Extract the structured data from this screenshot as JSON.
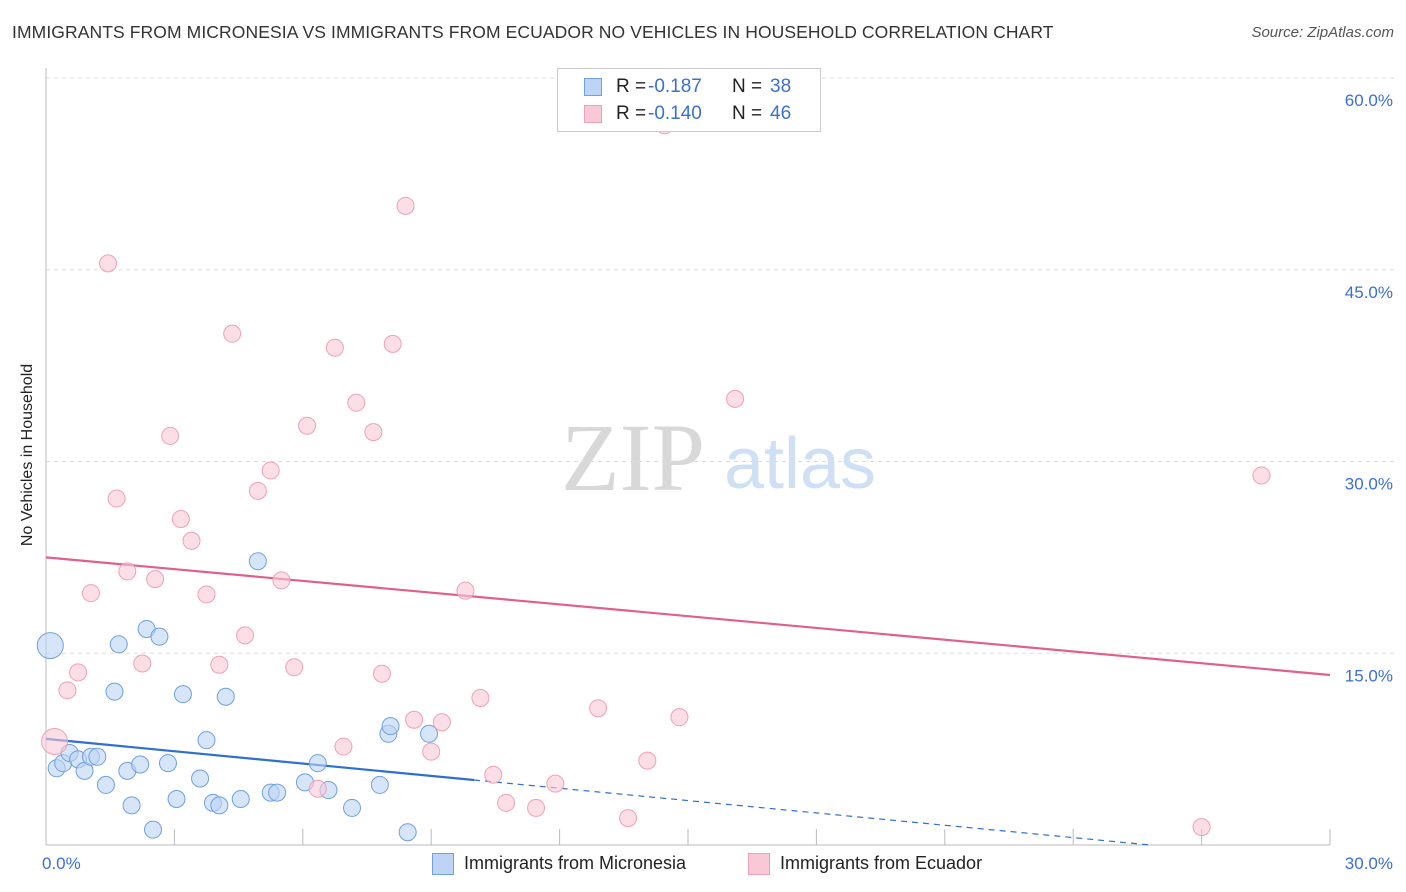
{
  "chart_data": {
    "type": "scatter",
    "title": "IMMIGRANTS FROM MICRONESIA VS IMMIGRANTS FROM ECUADOR NO VEHICLES IN HOUSEHOLD CORRELATION CHART",
    "source": "Source: ZipAtlas.com",
    "ylabel": "No Vehicles in Household",
    "xlabel": "",
    "xlim": [
      0,
      30
    ],
    "ylim": [
      0,
      60
    ],
    "x_tick_labels": [
      "0.0%",
      "30.0%"
    ],
    "y_ticks": [
      15,
      30,
      45,
      60
    ],
    "y_tick_labels": [
      "15.0%",
      "30.0%",
      "45.0%",
      "60.0%"
    ],
    "watermark": {
      "zip": "ZIP",
      "atlas": "atlas"
    },
    "series": [
      {
        "name": "Immigrants from Micronesia",
        "color": "#6fa0e0",
        "fill": "#bdd4f5",
        "line_color": "#2f6fd0",
        "R": "-0.187",
        "N": "38",
        "trend": {
          "x0": 0,
          "y0": 8.3,
          "x_solid_end": 10,
          "x1": 25.8,
          "y1": 0
        },
        "points": [
          [
            0.1,
            15.6
          ],
          [
            0.25,
            6
          ],
          [
            0.4,
            6.4
          ],
          [
            0.55,
            7.2
          ],
          [
            0.75,
            6.7
          ],
          [
            0.9,
            5.8
          ],
          [
            1.05,
            6.9
          ],
          [
            1.2,
            6.9
          ],
          [
            1.4,
            4.7
          ],
          [
            1.6,
            12
          ],
          [
            1.7,
            15.7
          ],
          [
            1.9,
            5.8
          ],
          [
            2.0,
            3.1
          ],
          [
            2.2,
            6.3
          ],
          [
            2.35,
            16.9
          ],
          [
            2.5,
            1.2
          ],
          [
            2.65,
            16.3
          ],
          [
            2.85,
            6.4
          ],
          [
            3.05,
            3.6
          ],
          [
            3.2,
            11.8
          ],
          [
            3.6,
            5.2
          ],
          [
            3.75,
            8.2
          ],
          [
            3.9,
            3.3
          ],
          [
            4.05,
            3.1
          ],
          [
            4.2,
            11.6
          ],
          [
            4.55,
            3.6
          ],
          [
            4.95,
            22.2
          ],
          [
            5.25,
            4.1
          ],
          [
            5.4,
            4.1
          ],
          [
            6.05,
            4.9
          ],
          [
            6.35,
            6.4
          ],
          [
            6.6,
            4.3
          ],
          [
            7.15,
            2.9
          ],
          [
            7.8,
            4.7
          ],
          [
            8.0,
            8.7
          ],
          [
            8.05,
            9.3
          ],
          [
            8.45,
            1
          ],
          [
            8.95,
            8.7
          ]
        ]
      },
      {
        "name": "Immigrants from Ecuador",
        "color": "#f0a0b8",
        "fill": "#f8c8d6",
        "line_color": "#e0608a",
        "R": "-0.140",
        "N": "46",
        "trend": {
          "x0": 0,
          "y0": 22.5,
          "x1": 30,
          "y1": 13.3
        },
        "points": [
          [
            0.2,
            8.1
          ],
          [
            0.5,
            12.1
          ],
          [
            0.75,
            13.5
          ],
          [
            1.05,
            19.7
          ],
          [
            1.45,
            45.5
          ],
          [
            1.65,
            27.1
          ],
          [
            1.9,
            21.4
          ],
          [
            2.25,
            14.2
          ],
          [
            2.55,
            20.8
          ],
          [
            2.9,
            32
          ],
          [
            3.15,
            25.5
          ],
          [
            3.4,
            23.8
          ],
          [
            3.75,
            19.6
          ],
          [
            4.05,
            14.1
          ],
          [
            4.35,
            40
          ],
          [
            4.65,
            16.4
          ],
          [
            4.95,
            27.7
          ],
          [
            5.25,
            29.3
          ],
          [
            5.5,
            20.7
          ],
          [
            5.8,
            13.9
          ],
          [
            6.1,
            32.8
          ],
          [
            6.35,
            4.4
          ],
          [
            6.75,
            38.9
          ],
          [
            6.95,
            7.7
          ],
          [
            7.25,
            34.6
          ],
          [
            7.65,
            32.3
          ],
          [
            7.85,
            13.4
          ],
          [
            8.1,
            39.2
          ],
          [
            8.4,
            50
          ],
          [
            8.6,
            9.8
          ],
          [
            9.0,
            7.3
          ],
          [
            9.25,
            9.6
          ],
          [
            9.8,
            19.9
          ],
          [
            10.15,
            11.5
          ],
          [
            10.45,
            5.5
          ],
          [
            10.75,
            3.3
          ],
          [
            11.45,
            2.9
          ],
          [
            11.9,
            4.8
          ],
          [
            12.9,
            10.7
          ],
          [
            13.6,
            2.1
          ],
          [
            14.05,
            6.6
          ],
          [
            14.45,
            56.3
          ],
          [
            14.8,
            10
          ],
          [
            16.1,
            34.9
          ],
          [
            27,
            1.4
          ],
          [
            28.4,
            28.9
          ]
        ]
      }
    ]
  }
}
